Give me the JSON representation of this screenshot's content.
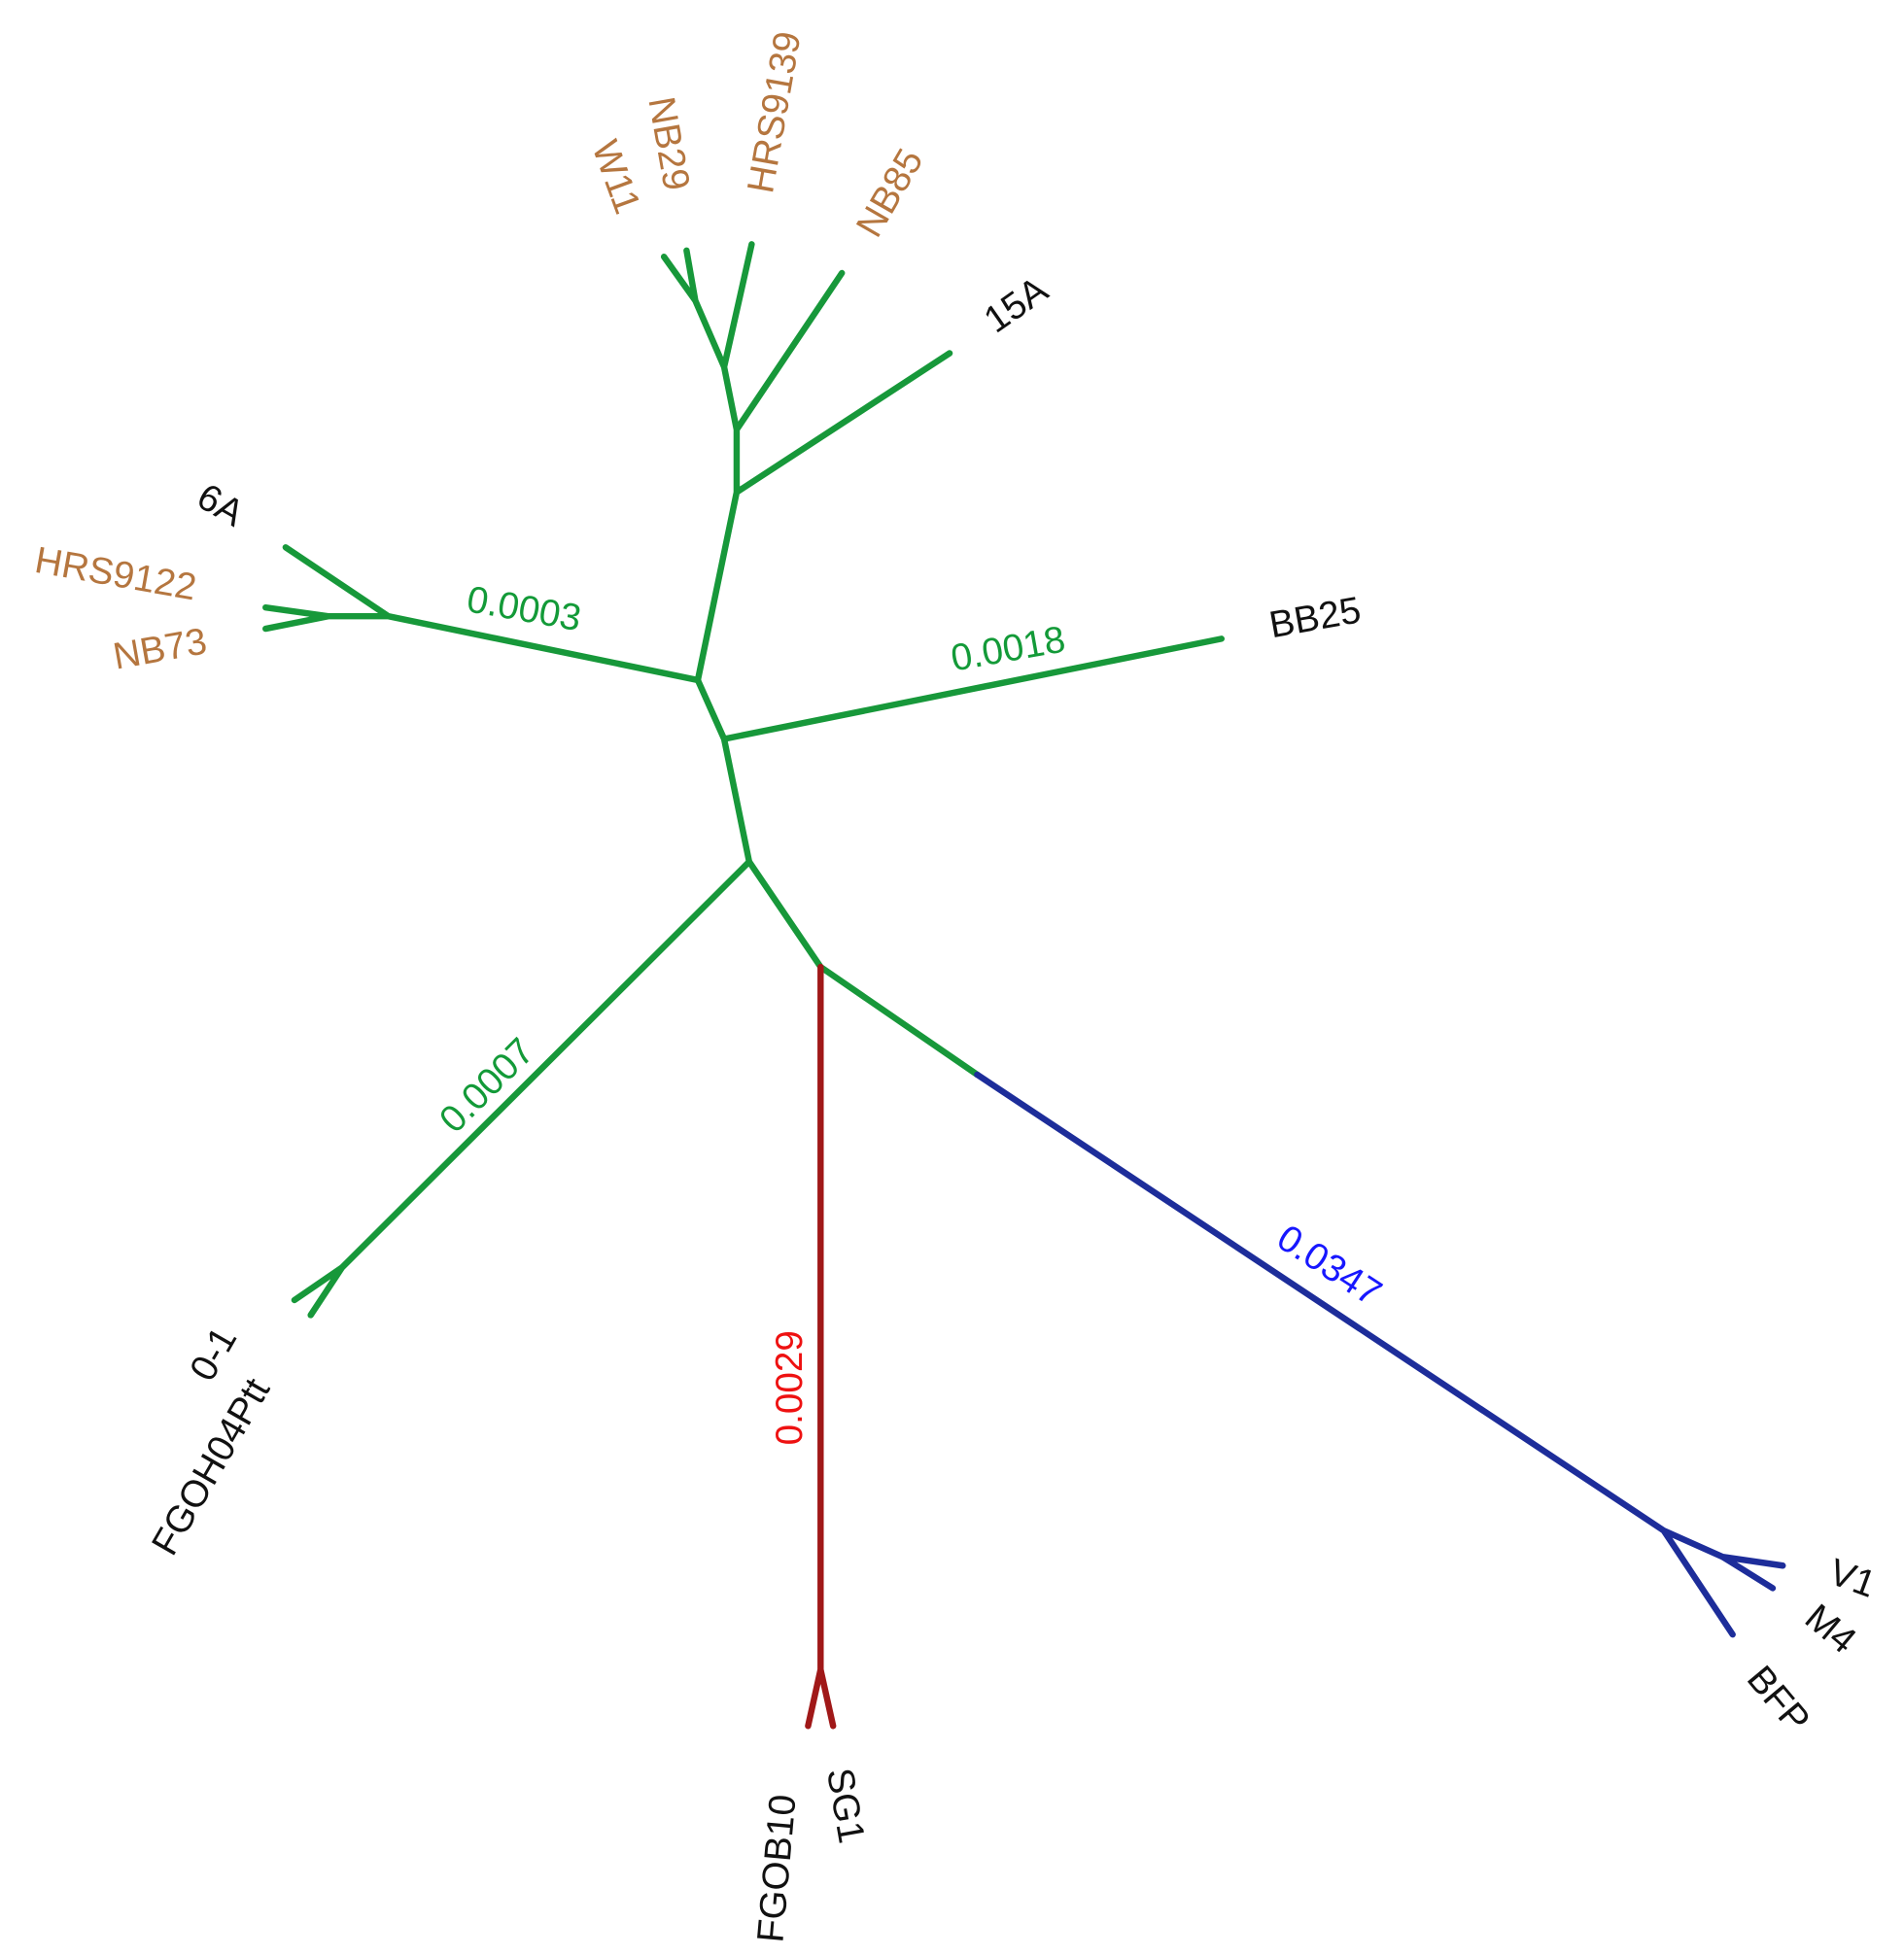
{
  "taxa": [
    "W11",
    "NB29",
    "HRS9139",
    "NB85",
    "15A",
    "6A",
    "HRS9122",
    "NB73",
    "BB25",
    "0-1",
    "FGOH04Ptt",
    "FGOB10",
    "SG1",
    "V1",
    "M4",
    "BFP"
  ],
  "branch_labels": [
    "0.0003",
    "0.0018",
    "0.0007",
    "0.0029",
    "0.0347"
  ]
}
